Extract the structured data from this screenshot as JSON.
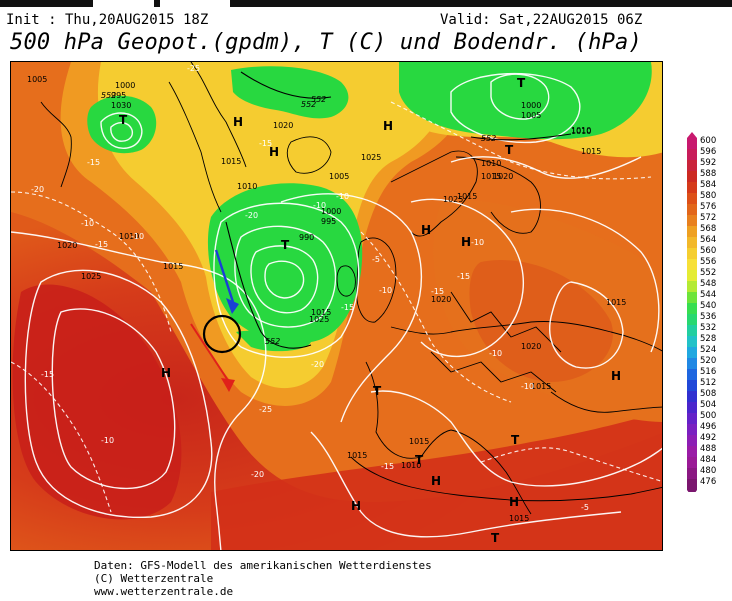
{
  "header": {
    "init": "Init : Thu,20AUG2015 18Z",
    "valid": "Valid: Sat,22AUG2015 06Z",
    "title": "500 hPa Geopot.(gpdm), T (C) und Bodendr. (hPa)"
  },
  "footer": {
    "line1": "Daten: GFS-Modell des amerikanischen Wetterdienstes",
    "line2": "(C) Wetterzentrale",
    "line3": "www.wetterzentrale.de"
  },
  "colors": {
    "green_low": "#22dd44",
    "yellow": "#f5e23a",
    "orange": "#f0a020",
    "dark_orange": "#e06a18",
    "red": "#d43a1a",
    "arrow_blue": "#1a3fd6",
    "arrow_red": "#e0201a",
    "circle": "#000000"
  },
  "scale": {
    "labels": [
      "600",
      "596",
      "592",
      "588",
      "584",
      "580",
      "576",
      "572",
      "568",
      "564",
      "560",
      "556",
      "552",
      "548",
      "544",
      "540",
      "536",
      "532",
      "528",
      "524",
      "520",
      "516",
      "512",
      "508",
      "504",
      "500",
      "496",
      "492",
      "488",
      "484",
      "480",
      "476"
    ],
    "colors": [
      "#c8196e",
      "#c81d5a",
      "#c9243a",
      "#cc2a22",
      "#d53a1a",
      "#dd5018",
      "#e2661a",
      "#e8801e",
      "#eea022",
      "#f2b82a",
      "#f5ce30",
      "#f7e038",
      "#e4ec34",
      "#b4ea34",
      "#6ee43a",
      "#38de50",
      "#28d870",
      "#22cfa0",
      "#22c2c8",
      "#20a8e0",
      "#2088e4",
      "#1e66e0",
      "#2048d8",
      "#3030d0",
      "#4a26cc",
      "#6422c8",
      "#7a20c0",
      "#8c1eb4",
      "#9a1ca6",
      "#9a1a96",
      "#8a1882",
      "#7a166e"
    ]
  },
  "map_labels": {
    "pressure": [
      "1005",
      "1000",
      "995",
      "1030",
      "1020",
      "1015",
      "1025",
      "1010",
      "1005",
      "1000",
      "995",
      "990",
      "1010",
      "1015",
      "1020",
      "1025",
      "1025",
      "1010",
      "1010",
      "1015",
      "1015",
      "1020",
      "1015",
      "1000",
      "1005",
      "1010",
      "1015",
      "1025",
      "1020",
      "1015",
      "1020",
      "1015",
      "1015",
      "1010",
      "1015",
      "1015"
    ],
    "temps": [
      "-25",
      "-20",
      "-15",
      "-10",
      "-10",
      "-15",
      "-20",
      "-15",
      "-10",
      "-10",
      "-5",
      "-10",
      "-15",
      "-20",
      "-25",
      "-15",
      "-10",
      "-15",
      "-10",
      "-10",
      "-15",
      "-20",
      "-15",
      "-10",
      "-5"
    ],
    "geopot": [
      "552",
      "552",
      "552",
      "552",
      "552"
    ],
    "highs_lows": [
      "T",
      "T",
      "T",
      "H",
      "H",
      "H",
      "H",
      "H",
      "H",
      "T",
      "T",
      "T",
      "H",
      "T",
      "H",
      "T",
      "H",
      "H"
    ]
  }
}
